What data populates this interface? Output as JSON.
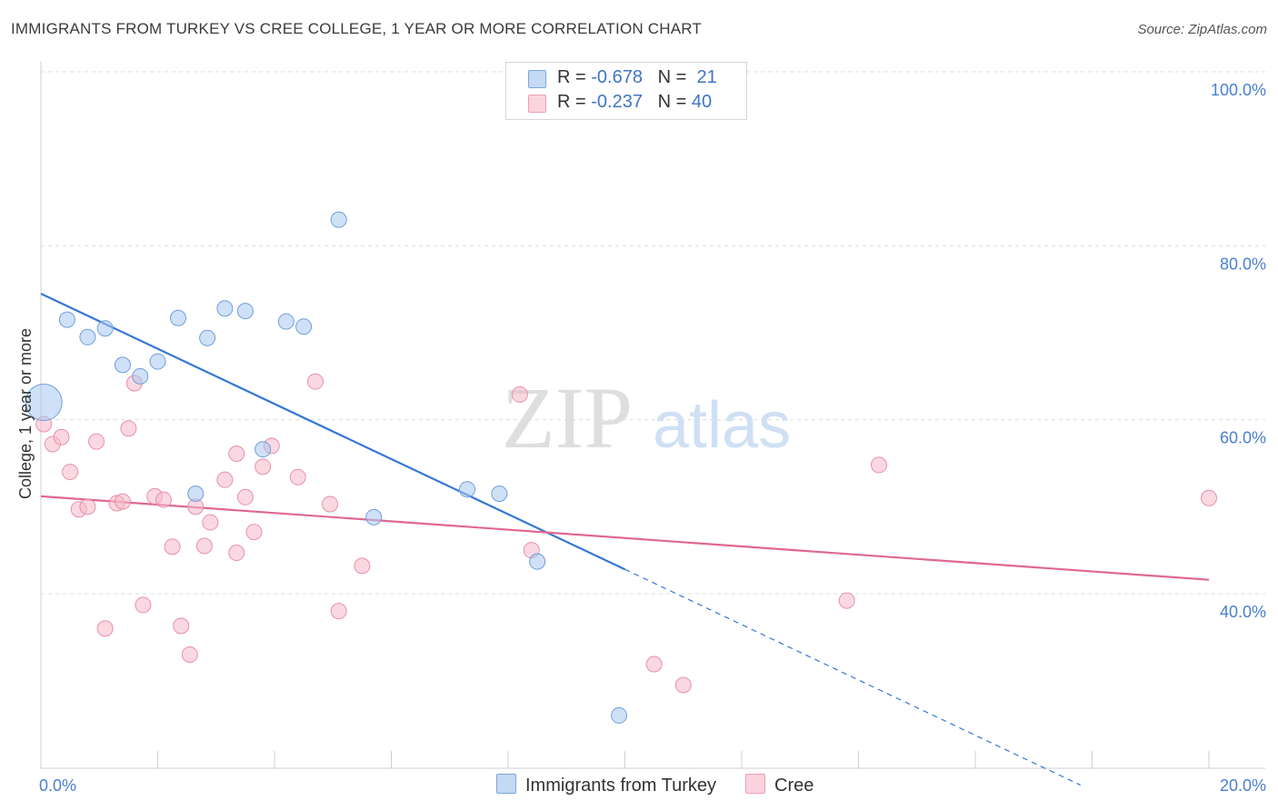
{
  "title": "IMMIGRANTS FROM TURKEY VS CREE COLLEGE, 1 YEAR OR MORE CORRELATION CHART",
  "source": "Source: ZipAtlas.com",
  "watermark": {
    "zip": "ZIP",
    "atlas": "atlas"
  },
  "legend": {
    "rows": [
      {
        "r_label": "R =",
        "r_value": "-0.678",
        "n_label": "N =",
        "n_value": "21",
        "color": "#a8c8f0"
      },
      {
        "r_label": "R =",
        "r_value": "-0.237",
        "n_label": "N =",
        "n_value": "40",
        "color": "#f5b8ca"
      }
    ]
  },
  "chart_data": {
    "type": "scatter",
    "title": "IMMIGRANTS FROM TURKEY VS CREE COLLEGE, 1 YEAR OR MORE CORRELATION CHART",
    "xlabel": "",
    "ylabel": "College, 1 year or more",
    "xlim": [
      0,
      20
    ],
    "ylim": [
      20,
      102
    ],
    "x_tick_labels": [
      "0.0%",
      "20.0%"
    ],
    "y_tick_labels": [
      "100.0%",
      "80.0%",
      "60.0%",
      "40.0%"
    ],
    "y_ticks": [
      100,
      80,
      60,
      40
    ],
    "grid": "horizontal dashed",
    "legend_position": "top-center and bottom",
    "series": [
      {
        "name": "Immigrants from Turkey",
        "color": "#a8c8f0",
        "stroke": "#6f9fdc",
        "line_color": "#3577d4",
        "points": [
          [
            0.05,
            62.0,
            "large"
          ],
          [
            0.45,
            71.5
          ],
          [
            0.8,
            69.5
          ],
          [
            1.1,
            70.5
          ],
          [
            1.4,
            66.3
          ],
          [
            1.7,
            65.0
          ],
          [
            2.0,
            66.7
          ],
          [
            2.35,
            71.7
          ],
          [
            2.85,
            69.4
          ],
          [
            3.15,
            72.8
          ],
          [
            3.5,
            72.5
          ],
          [
            4.2,
            71.3
          ],
          [
            4.5,
            70.7
          ],
          [
            5.1,
            83.0
          ],
          [
            3.8,
            56.6
          ],
          [
            2.65,
            51.5
          ],
          [
            5.7,
            48.8
          ],
          [
            7.3,
            52.0
          ],
          [
            7.85,
            51.5
          ],
          [
            8.5,
            43.7
          ],
          [
            9.9,
            26.0
          ]
        ],
        "trend": {
          "x": [
            0,
            10
          ],
          "y": [
            74.5,
            42.8
          ]
        },
        "trend_dashed": {
          "x": [
            10,
            17.8
          ],
          "y": [
            42.8,
            18.0
          ]
        }
      },
      {
        "name": "Cree",
        "color": "#f5b8ca",
        "stroke": "#e890aa",
        "line_color": "#e06890",
        "points": [
          [
            0.05,
            59.5
          ],
          [
            0.2,
            57.2
          ],
          [
            0.35,
            58.0
          ],
          [
            0.5,
            54.0
          ],
          [
            0.65,
            49.7
          ],
          [
            0.8,
            50.0
          ],
          [
            0.95,
            57.5
          ],
          [
            1.1,
            36.0
          ],
          [
            1.3,
            50.4
          ],
          [
            1.4,
            50.6
          ],
          [
            1.5,
            59.0
          ],
          [
            1.6,
            64.2
          ],
          [
            1.75,
            38.7
          ],
          [
            1.95,
            51.2
          ],
          [
            2.1,
            50.8
          ],
          [
            2.25,
            45.4
          ],
          [
            2.4,
            36.3
          ],
          [
            2.55,
            33.0
          ],
          [
            2.65,
            50.0
          ],
          [
            2.8,
            45.5
          ],
          [
            2.9,
            48.2
          ],
          [
            3.15,
            53.1
          ],
          [
            3.35,
            56.1
          ],
          [
            3.35,
            44.7
          ],
          [
            3.5,
            51.1
          ],
          [
            3.65,
            47.1
          ],
          [
            3.8,
            54.6
          ],
          [
            3.95,
            57.0
          ],
          [
            4.4,
            53.4
          ],
          [
            4.7,
            64.4
          ],
          [
            4.95,
            50.3
          ],
          [
            5.1,
            38.0
          ],
          [
            5.5,
            43.2
          ],
          [
            8.2,
            62.9
          ],
          [
            8.4,
            45.0
          ],
          [
            10.5,
            31.9
          ],
          [
            11.0,
            29.5
          ],
          [
            13.8,
            39.2
          ],
          [
            14.35,
            54.8
          ],
          [
            20.0,
            51.0
          ]
        ],
        "trend": {
          "x": [
            0,
            20
          ],
          "y": [
            51.2,
            41.6
          ]
        }
      }
    ]
  }
}
